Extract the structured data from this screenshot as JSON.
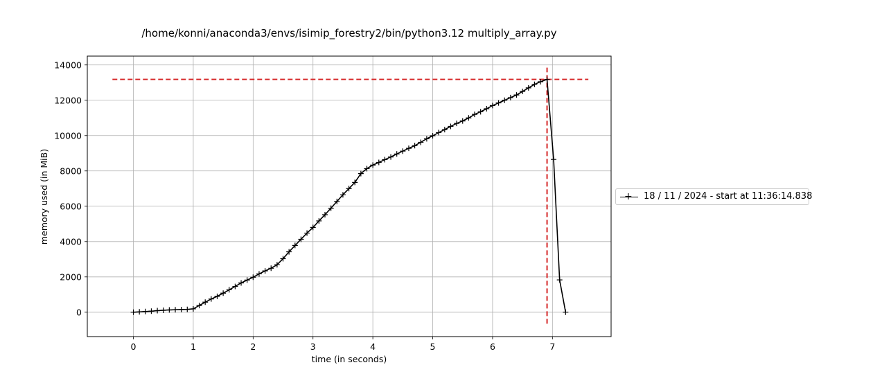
{
  "chart_data": {
    "type": "line",
    "title": "/home/konni/anaconda3/envs/isimip_forestry2/bin/python3.12 multiply_array.py",
    "xlabel": "time (in seconds)",
    "ylabel": "memory used (in MiB)",
    "xlim": [
      -0.77,
      7.98
    ],
    "ylim": [
      -1380,
      14500
    ],
    "xticks": [
      0,
      1,
      2,
      3,
      4,
      5,
      6,
      7
    ],
    "yticks": [
      0,
      2000,
      4000,
      6000,
      8000,
      10000,
      12000,
      14000
    ],
    "grid": true,
    "legend_position": "right",
    "series": [
      {
        "name": "18 / 11 / 2024 - start at 11:36:14.838",
        "color": "#000000",
        "marker": "+",
        "x": [
          0,
          0.1,
          0.2,
          0.3,
          0.4,
          0.5,
          0.6,
          0.7,
          0.8,
          0.9,
          1.0,
          1.1,
          1.2,
          1.3,
          1.4,
          1.5,
          1.6,
          1.7,
          1.8,
          1.9,
          2.0,
          2.1,
          2.2,
          2.3,
          2.4,
          2.5,
          2.6,
          2.7,
          2.8,
          2.9,
          3.0,
          3.1,
          3.2,
          3.3,
          3.4,
          3.5,
          3.6,
          3.7,
          3.8,
          3.9,
          4.0,
          4.1,
          4.2,
          4.3,
          4.4,
          4.5,
          4.6,
          4.7,
          4.8,
          4.9,
          5.0,
          5.1,
          5.2,
          5.3,
          5.4,
          5.5,
          5.6,
          5.7,
          5.8,
          5.9,
          6.0,
          6.1,
          6.2,
          6.3,
          6.4,
          6.5,
          6.6,
          6.7,
          6.8,
          6.91,
          7.02,
          7.12,
          7.22
        ],
        "y": [
          0,
          20,
          40,
          60,
          90,
          110,
          130,
          140,
          150,
          160,
          190,
          380,
          570,
          750,
          900,
          1080,
          1270,
          1460,
          1660,
          1820,
          1980,
          2170,
          2340,
          2490,
          2690,
          3030,
          3420,
          3780,
          4130,
          4480,
          4800,
          5170,
          5520,
          5890,
          6270,
          6650,
          7000,
          7350,
          7850,
          8130,
          8330,
          8480,
          8640,
          8790,
          8960,
          9120,
          9280,
          9430,
          9620,
          9820,
          9990,
          10170,
          10340,
          10520,
          10690,
          10830,
          11000,
          11200,
          11350,
          11520,
          11700,
          11850,
          12000,
          12150,
          12300,
          12500,
          12700,
          12900,
          13050,
          13180,
          8650,
          1830,
          0
        ]
      }
    ],
    "reference_lines": [
      {
        "orientation": "horizontal",
        "value": 13180,
        "from": -0.35,
        "to": 7.6,
        "color": "#d62728",
        "style": "dashed"
      },
      {
        "orientation": "vertical",
        "value": 6.91,
        "from": -650,
        "to": 13850,
        "color": "#d62728",
        "style": "dashed"
      }
    ]
  }
}
